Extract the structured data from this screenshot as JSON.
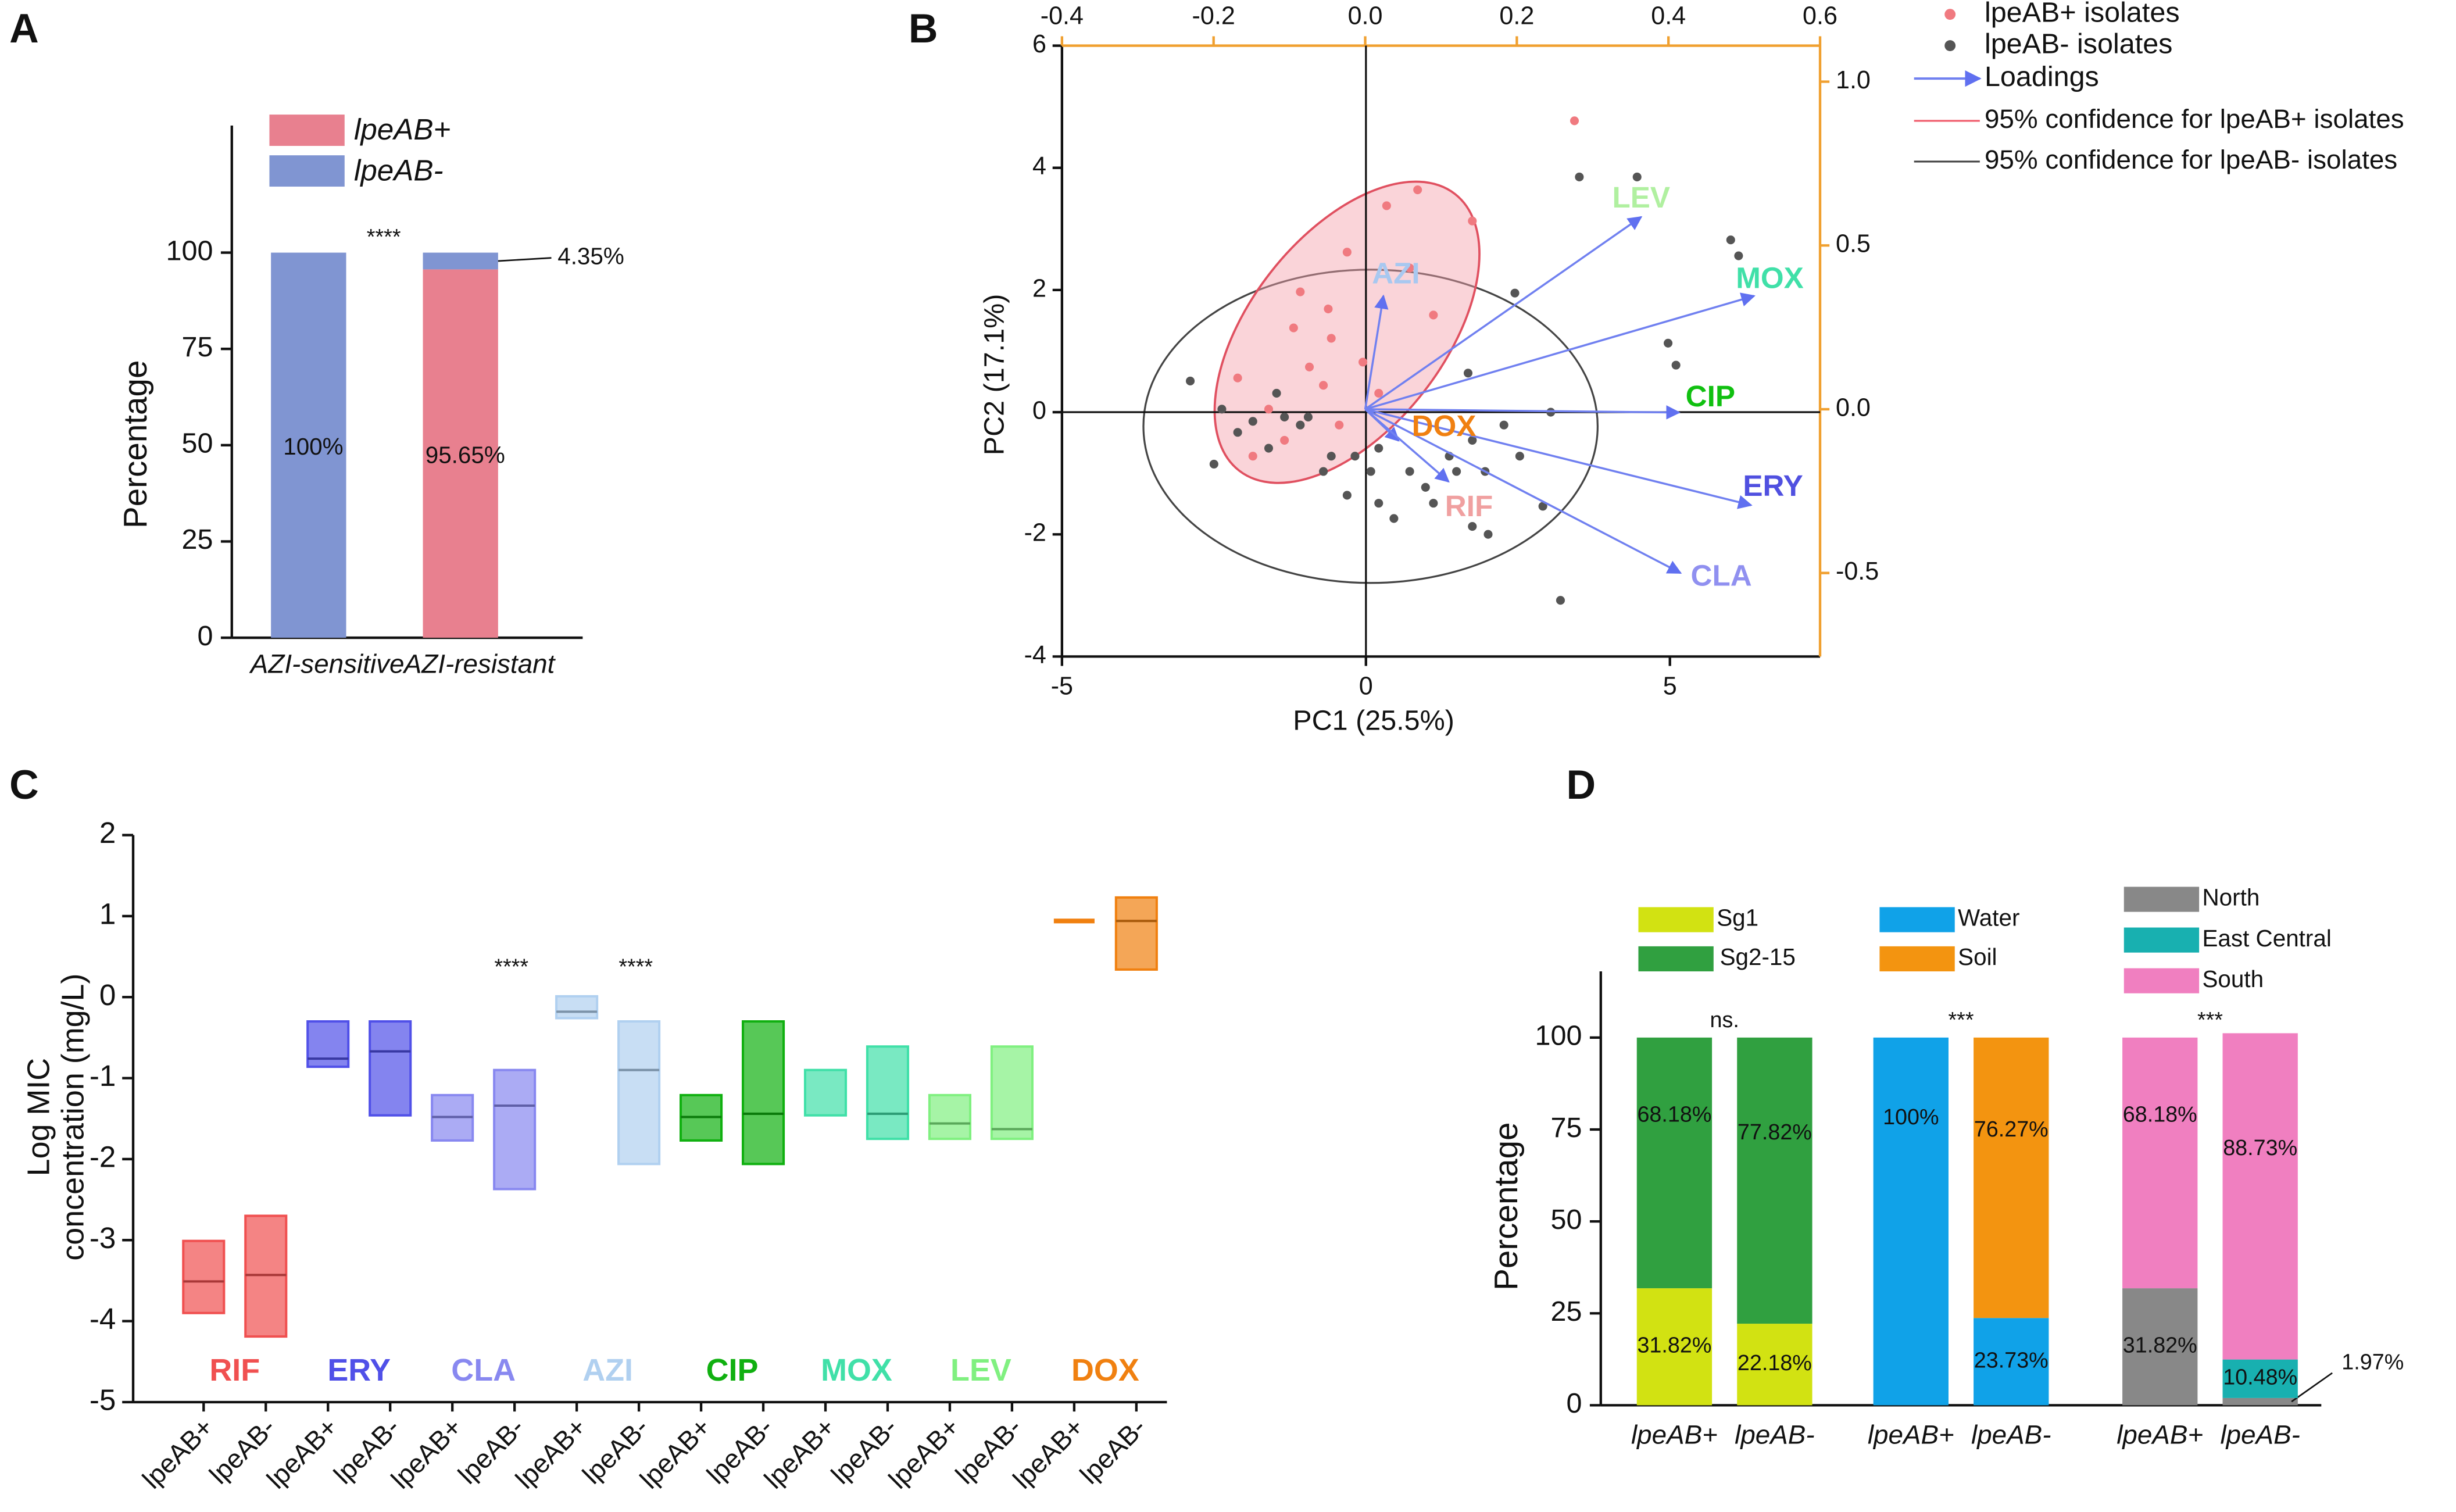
{
  "panel_labels": [
    "A",
    "B",
    "C",
    "D"
  ],
  "chart_data": [
    {
      "type": "stacked_bar",
      "categories": [
        "AZI-sensitive",
        "AZI-resistant"
      ],
      "series": [
        {
          "name": "lpeAB+",
          "color": "#e8808f",
          "values": [
            0,
            95.65
          ],
          "value_labels": [
            null,
            "95.65%"
          ]
        },
        {
          "name": "lpeAB-",
          "color": "#8095d2",
          "values": [
            100,
            4.35
          ],
          "value_labels": [
            "100%",
            "4.35%"
          ]
        }
      ],
      "ylabel": "Percentage",
      "ylim": [
        0,
        133
      ],
      "yticks": [
        0,
        25,
        50,
        75,
        100
      ],
      "annotations": [
        "****"
      ]
    },
    {
      "type": "scatter",
      "xlabel": "PC1 (25.5%)",
      "ylabel": "PC2 (17.1%)",
      "xlim": [
        -5,
        7.47
      ],
      "ylim": [
        -4,
        6
      ],
      "xticks": [
        -5,
        0,
        5
      ],
      "yticks": [
        -4,
        -2,
        0,
        2,
        4,
        6
      ],
      "x2lim": [
        -0.4,
        0.6
      ],
      "x2ticks": [
        -0.4,
        -0.2,
        {
          "value": 0,
          "label": "0.0"
        },
        0.2,
        0.4,
        0.6
      ],
      "y2lim": [
        -0.755,
        1.11
      ],
      "y2ticks": [
        -0.5,
        {
          "value": 0,
          "label": "0.0"
        },
        0.5,
        {
          "value": 1,
          "label": "1.0"
        }
      ],
      "series": [
        {
          "name": "lpeAB+ isolates",
          "color": "#f07a80",
          "x": [
            3.43,
            1.75,
            0.34,
            0.85,
            -0.62,
            -0.57,
            -1.19,
            -0.93,
            -0.7,
            -1.6,
            -2.11,
            -1.34,
            -0.31,
            1.11,
            0.72,
            -0.05,
            -1.86,
            -1.08,
            -0.44,
            0.21
          ],
          "y": [
            4.77,
            3.13,
            3.38,
            3.64,
            1.69,
            1.21,
            1.38,
            0.74,
            0.44,
            0.05,
            0.56,
            -0.46,
            2.62,
            1.59,
            2.36,
            0.82,
            -0.72,
            1.97,
            -0.21,
            0.31
          ]
        },
        {
          "name": "lpeAB- isolates",
          "color": "#555555",
          "x": [
            4.46,
            3.51,
            6.0,
            6.13,
            4.97,
            5.1,
            2.45,
            1.68,
            3.04,
            3.2,
            2.91,
            2.01,
            2.53,
            1.96,
            1.11,
            0.98,
            0.46,
            0.08,
            -0.31,
            -0.7,
            -1.08,
            -1.34,
            -1.86,
            -2.37,
            -2.89,
            -2.5,
            1.49,
            1.75,
            2.27,
            0.72,
            0.21,
            1.75,
            1.37,
            -0.18,
            -0.57,
            -0.95,
            -1.47,
            -2.11,
            -1.6,
            0.21
          ],
          "y": [
            3.85,
            3.85,
            2.82,
            2.56,
            1.13,
            0.77,
            1.95,
            0.64,
            0,
            -3.08,
            -1.54,
            -2.0,
            -0.72,
            -0.97,
            -1.49,
            -1.23,
            -1.74,
            -0.97,
            -1.36,
            -0.97,
            -0.21,
            -0.08,
            -0.15,
            0.05,
            0.51,
            -0.85,
            -0.97,
            -0.46,
            -0.21,
            -0.97,
            -1.49,
            -1.87,
            -0.72,
            -0.72,
            -0.72,
            -0.08,
            0.31,
            -0.33,
            -0.59,
            -0.59
          ]
        }
      ],
      "loadings": {
        "name": "Loadings",
        "color": "#7080f0",
        "labels": [
          "LEV",
          "MOX",
          "CIP",
          "ERY",
          "CLA",
          "AZI",
          "DOX",
          "RIF"
        ],
        "label_colors": [
          "#b0f0a0",
          "#40e0a8",
          "#10c010",
          "#5050e0",
          "#9090f0",
          "#a8c8f0",
          "#f08010",
          "#f0a0a0"
        ],
        "x": [
          0.364,
          0.513,
          0.414,
          0.509,
          0.416,
          0.024,
          0.044,
          0.11
        ],
        "y": [
          0.587,
          0.346,
          -0.01,
          -0.293,
          -0.5,
          0.346,
          -0.096,
          -0.221
        ]
      },
      "confidence": [
        {
          "name": "95% confidence for lpeAB+ isolates",
          "color": "#f06070"
        },
        {
          "name": "95% confidence for lpeAB- isolates",
          "color": "#444444"
        }
      ]
    },
    {
      "type": "range_box",
      "ylabel": [
        "Log MIC",
        "concentration (mg/L)"
      ],
      "ylim": [
        -5,
        2
      ],
      "yticks": [
        -5,
        -4,
        -3,
        -2,
        -1,
        0,
        1,
        2
      ],
      "categories": [
        "lpeAB+",
        "lpeAB-",
        "lpeAB+",
        "lpeAB-",
        "lpeAB+",
        "lpeAB-",
        "lpeAB+",
        "lpeAB-",
        "lpeAB+",
        "lpeAB-",
        "lpeAB+",
        "lpeAB-",
        "lpeAB+",
        "lpeAB-",
        "lpeAB+",
        "lpeAB-"
      ],
      "groups": [
        "RIF",
        "ERY",
        "CLA",
        "AZI",
        "CIP",
        "MOX",
        "LEV",
        "DOX"
      ],
      "group_colors": [
        "#f05050",
        "#5050e8",
        "#8888f0",
        "#b0d0f0",
        "#10b010",
        "#40e0a8",
        "#80f080",
        "#f08010"
      ],
      "annotations": [
        null,
        null,
        "****",
        "****",
        null,
        null,
        null,
        null
      ],
      "low": [
        -3.9,
        -4.19,
        -0.86,
        -1.46,
        -1.77,
        -2.37,
        -0.26,
        -2.06,
        -1.77,
        -2.06,
        -1.46,
        -1.75,
        -1.75,
        -1.75,
        0.94,
        0.34
      ],
      "high": [
        -3.01,
        -2.7,
        -0.3,
        -0.3,
        -1.21,
        -0.9,
        0.01,
        -0.3,
        -1.21,
        -0.3,
        -0.9,
        -0.61,
        -1.21,
        -0.61,
        0.94,
        1.23
      ],
      "median": [
        -3.51,
        -3.43,
        -0.76,
        -0.67,
        -1.48,
        -1.34,
        -0.18,
        -0.9,
        -1.48,
        -1.44,
        null,
        -1.44,
        -1.56,
        -1.63,
        0.94,
        0.94
      ]
    },
    {
      "type": "stacked_groups",
      "ylabel": "Percentage",
      "ylim": [
        0,
        118
      ],
      "yticks": [
        0,
        25,
        50,
        75,
        100
      ],
      "groups": [
        {
          "categories": [
            "lpeAB+",
            "lpeAB-"
          ],
          "annotation": "ns.",
          "series": [
            {
              "name": "Sg1",
              "color": "#d2e212",
              "values": [
                31.82,
                22.18
              ],
              "value_labels": [
                "31.82%",
                "22.18%"
              ]
            },
            {
              "name": "Sg2-15",
              "color": "#30a040",
              "values": [
                68.18,
                77.82
              ],
              "value_labels": [
                "68.18%",
                "77.82%"
              ]
            }
          ]
        },
        {
          "categories": [
            "lpeAB+",
            "lpeAB-"
          ],
          "annotation": "***",
          "series": [
            {
              "name": "Water",
              "color": "#10a2e8",
              "values": [
                100,
                23.73
              ],
              "value_labels": [
                "100%",
                "23.73%"
              ]
            },
            {
              "name": "Soil",
              "color": "#f39410",
              "values": [
                0,
                76.27
              ],
              "value_labels": [
                null,
                "76.27%"
              ]
            }
          ]
        },
        {
          "categories": [
            "lpeAB+",
            "lpeAB-"
          ],
          "annotation": "***",
          "series": [
            {
              "name": "North",
              "color": "#888888",
              "values": [
                31.82,
                1.97
              ],
              "value_labels": [
                "31.82%",
                "1.97%"
              ]
            },
            {
              "name": "East Central",
              "color": "#18b0b0",
              "values": [
                0,
                10.48
              ],
              "value_labels": [
                null,
                "10.48%"
              ]
            },
            {
              "name": "South",
              "color": "#f07fc0",
              "values": [
                68.18,
                88.73
              ],
              "value_labels": [
                "68.18%",
                "88.73%"
              ]
            }
          ]
        }
      ]
    }
  ]
}
